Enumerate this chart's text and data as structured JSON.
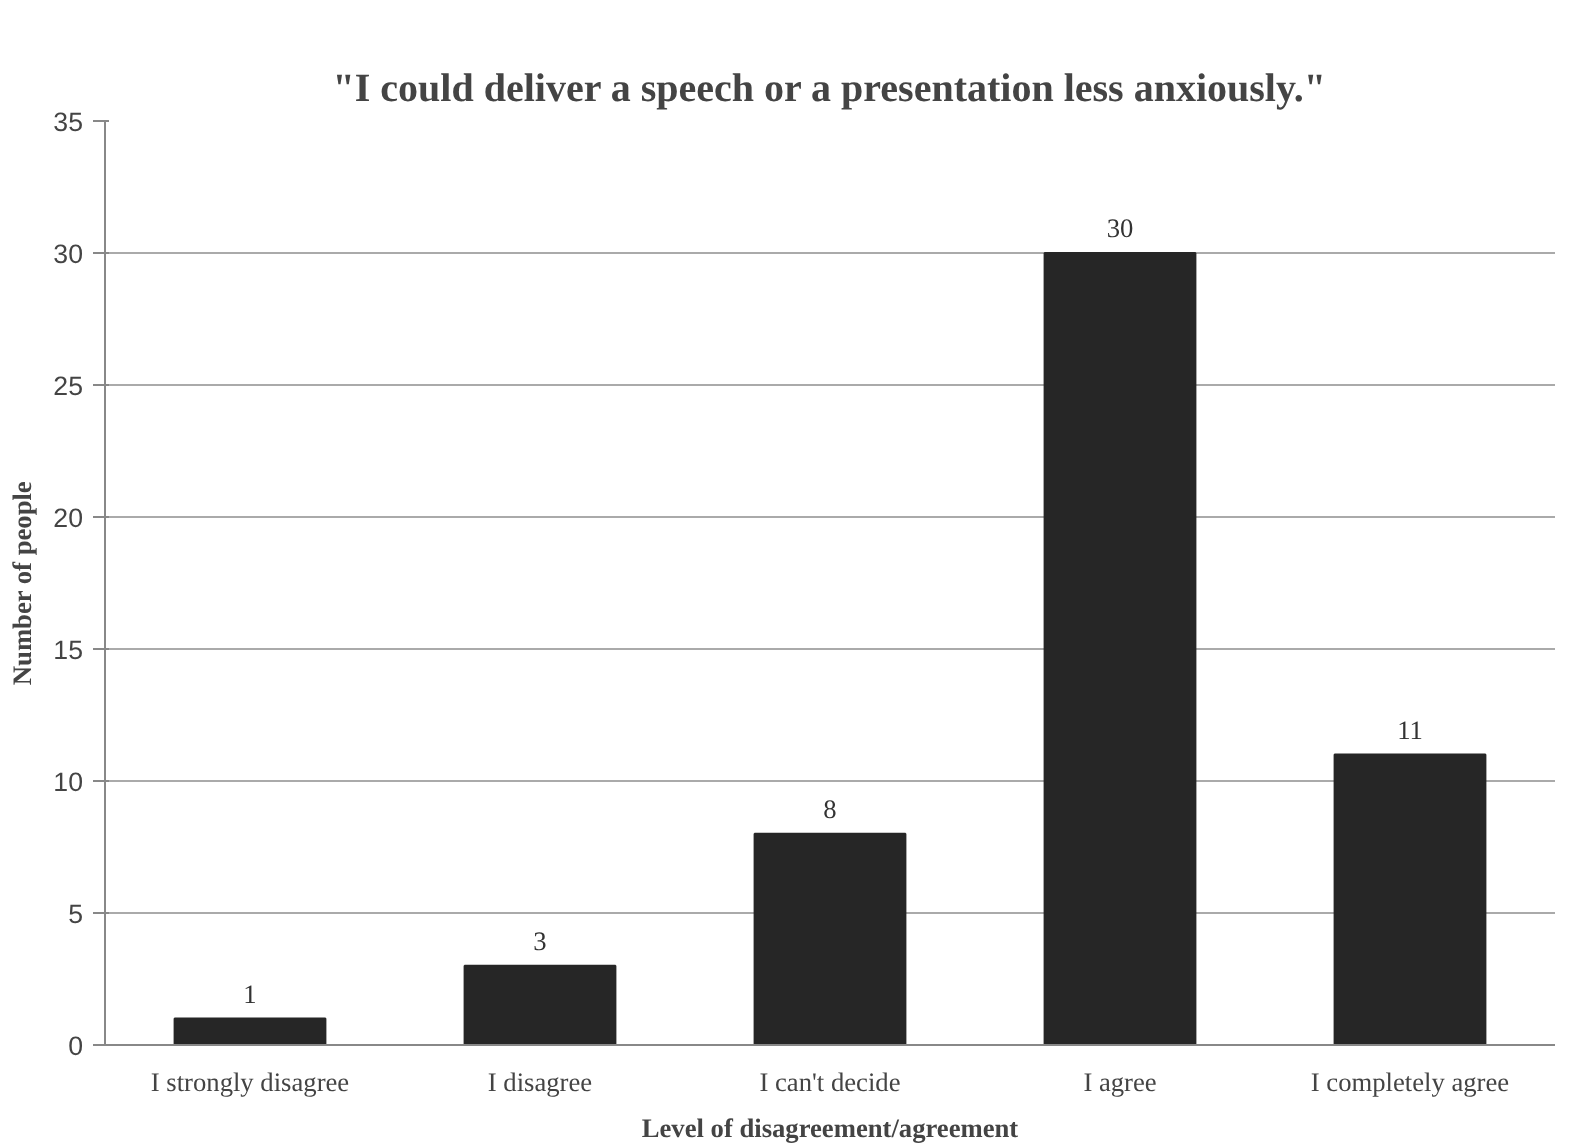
{
  "chart_data": {
    "type": "bar",
    "title": "\"I could deliver a speech or a presentation less anxiously.\"",
    "xlabel": "Level of disagreement/agreement",
    "ylabel": "Number of people",
    "categories": [
      "I strongly disagree",
      "I disagree",
      "I can't decide",
      "I agree",
      "I completely agree"
    ],
    "values": [
      1,
      3,
      8,
      30,
      11
    ],
    "color": "#262626",
    "ylim": [
      0,
      35
    ],
    "yticks": [
      0,
      5,
      10,
      15,
      20,
      25,
      30,
      35
    ],
    "grid": "y",
    "data_labels": true
  }
}
